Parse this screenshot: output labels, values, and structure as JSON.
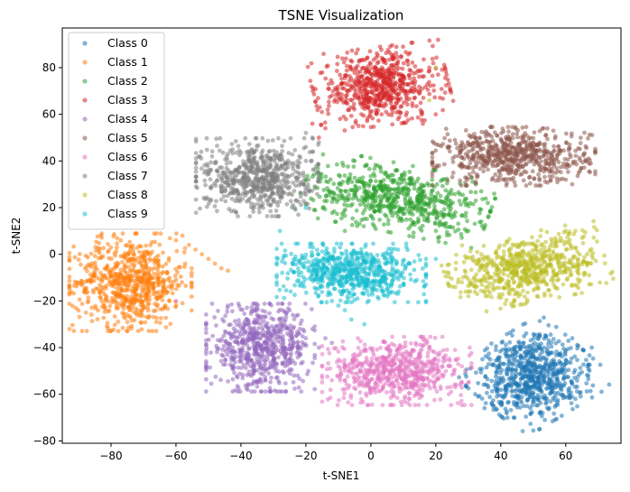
{
  "chart_data": {
    "type": "scatter",
    "title": "TSNE Visualization",
    "xlabel": "t-SNE1",
    "ylabel": "t-SNE2",
    "xlim": [
      -95,
      77
    ],
    "ylim": [
      -81,
      97
    ],
    "xticks": [
      -80,
      -60,
      -40,
      -20,
      0,
      20,
      40,
      60
    ],
    "yticks": [
      -80,
      -60,
      -40,
      -20,
      0,
      20,
      40,
      60,
      80
    ],
    "grid": false,
    "legend_position": "top-left",
    "marker_alpha": 0.55,
    "series": [
      {
        "name": "Class 0",
        "color": "#1f77b4",
        "center": [
          50,
          -52
        ],
        "spread": [
          9,
          9
        ],
        "angle": 40,
        "n": 750,
        "extra_points": [
          [
            44,
            -70
          ],
          [
            35,
            -66
          ],
          [
            62,
            -36
          ],
          [
            68,
            -40
          ]
        ]
      },
      {
        "name": "Class 1",
        "color": "#ff7f0e",
        "center": [
          -74,
          -12
        ],
        "spread": [
          9,
          10
        ],
        "angle": 0,
        "n": 700,
        "extra_points": [
          [
            -60,
            6
          ],
          [
            -56,
            4
          ],
          [
            -52,
            0
          ],
          [
            -48,
            -4
          ],
          [
            -46,
            -6
          ],
          [
            -44,
            -7
          ],
          [
            -58,
            8
          ],
          [
            -54,
            2
          ],
          [
            -50,
            -2
          ],
          [
            -84,
            -24
          ],
          [
            -87,
            -20
          ],
          [
            -62,
            -20
          ],
          [
            -60,
            -22
          ],
          [
            -64,
            -16
          ],
          [
            -58,
            -21
          ]
        ]
      },
      {
        "name": "Class 2",
        "color": "#2ca02c",
        "center": [
          8,
          24
        ],
        "spread": [
          14,
          7
        ],
        "angle": -15,
        "n": 650,
        "extra_points": [
          [
            26,
            18
          ],
          [
            34,
            14
          ],
          [
            36,
            22
          ],
          [
            20,
            10
          ],
          [
            -5,
            40
          ],
          [
            2,
            38
          ],
          [
            -8,
            10
          ],
          [
            38,
            26
          ],
          [
            30,
            10
          ]
        ]
      },
      {
        "name": "Class 3",
        "color": "#d62728",
        "center": [
          3,
          72
        ],
        "spread": [
          10,
          8
        ],
        "angle": 10,
        "n": 650,
        "extra_points": [
          [
            -18,
            56
          ],
          [
            -16,
            50
          ],
          [
            -14,
            54
          ],
          [
            16,
            56
          ],
          [
            18,
            80
          ],
          [
            -12,
            68
          ]
        ]
      },
      {
        "name": "Class 4",
        "color": "#9467bd",
        "center": [
          -34,
          -40
        ],
        "spread": [
          8,
          9
        ],
        "angle": 0,
        "n": 650,
        "extra_points": [
          [
            -22,
            -34
          ],
          [
            -18,
            -32
          ],
          [
            -14,
            -36
          ],
          [
            -16,
            -40
          ],
          [
            -44,
            -22
          ],
          [
            -25,
            -24
          ],
          [
            -20,
            -36
          ],
          [
            -12,
            -38
          ]
        ]
      },
      {
        "name": "Class 5",
        "color": "#8c564b",
        "center": [
          44,
          42
        ],
        "spread": [
          12,
          6
        ],
        "angle": 0,
        "n": 650,
        "extra_points": [
          [
            24,
            46
          ],
          [
            28,
            48
          ],
          [
            32,
            50
          ],
          [
            30,
            44
          ],
          [
            60,
            32
          ],
          [
            62,
            30
          ]
        ]
      },
      {
        "name": "Class 6",
        "color": "#e377c2",
        "center": [
          8,
          -50
        ],
        "spread": [
          11,
          7
        ],
        "angle": 0,
        "n": 650,
        "extra_points": [
          [
            -10,
            -48
          ],
          [
            -12,
            -54
          ],
          [
            28,
            -48
          ],
          [
            -4,
            -36
          ],
          [
            24,
            -60
          ],
          [
            -60,
            -20
          ]
        ]
      },
      {
        "name": "Class 7",
        "color": "#7f7f7f",
        "center": [
          -35,
          33
        ],
        "spread": [
          9,
          8
        ],
        "angle": 0,
        "n": 650,
        "extra_points": [
          [
            -22,
            42
          ],
          [
            -20,
            40
          ],
          [
            -18,
            50
          ],
          [
            -20,
            52
          ],
          [
            -16,
            48
          ],
          [
            -24,
            38
          ],
          [
            -20,
            46
          ],
          [
            -18,
            44
          ]
        ]
      },
      {
        "name": "Class 8",
        "color": "#bcbd22",
        "center": [
          48,
          -6
        ],
        "spread": [
          12,
          7
        ],
        "angle": 15,
        "n": 650,
        "extra_points": [
          [
            28,
            -12
          ],
          [
            26,
            -14
          ],
          [
            24,
            -8
          ],
          [
            60,
            10
          ],
          [
            20,
            80
          ],
          [
            18,
            66
          ],
          [
            30,
            -18
          ],
          [
            64,
            -12
          ]
        ]
      },
      {
        "name": "Class 9",
        "color": "#17becf",
        "center": [
          -6,
          -8
        ],
        "spread": [
          11,
          6
        ],
        "angle": 0,
        "n": 650,
        "extra_points": [
          [
            -10,
            -22
          ],
          [
            -8,
            -24
          ],
          [
            -6,
            -28
          ],
          [
            -12,
            -20
          ],
          [
            -20,
            20
          ],
          [
            -28,
            10
          ],
          [
            12,
            -4
          ],
          [
            -14,
            0
          ],
          [
            -2,
            -30
          ],
          [
            20,
            -2
          ],
          [
            -24,
            -4
          ]
        ]
      }
    ]
  }
}
